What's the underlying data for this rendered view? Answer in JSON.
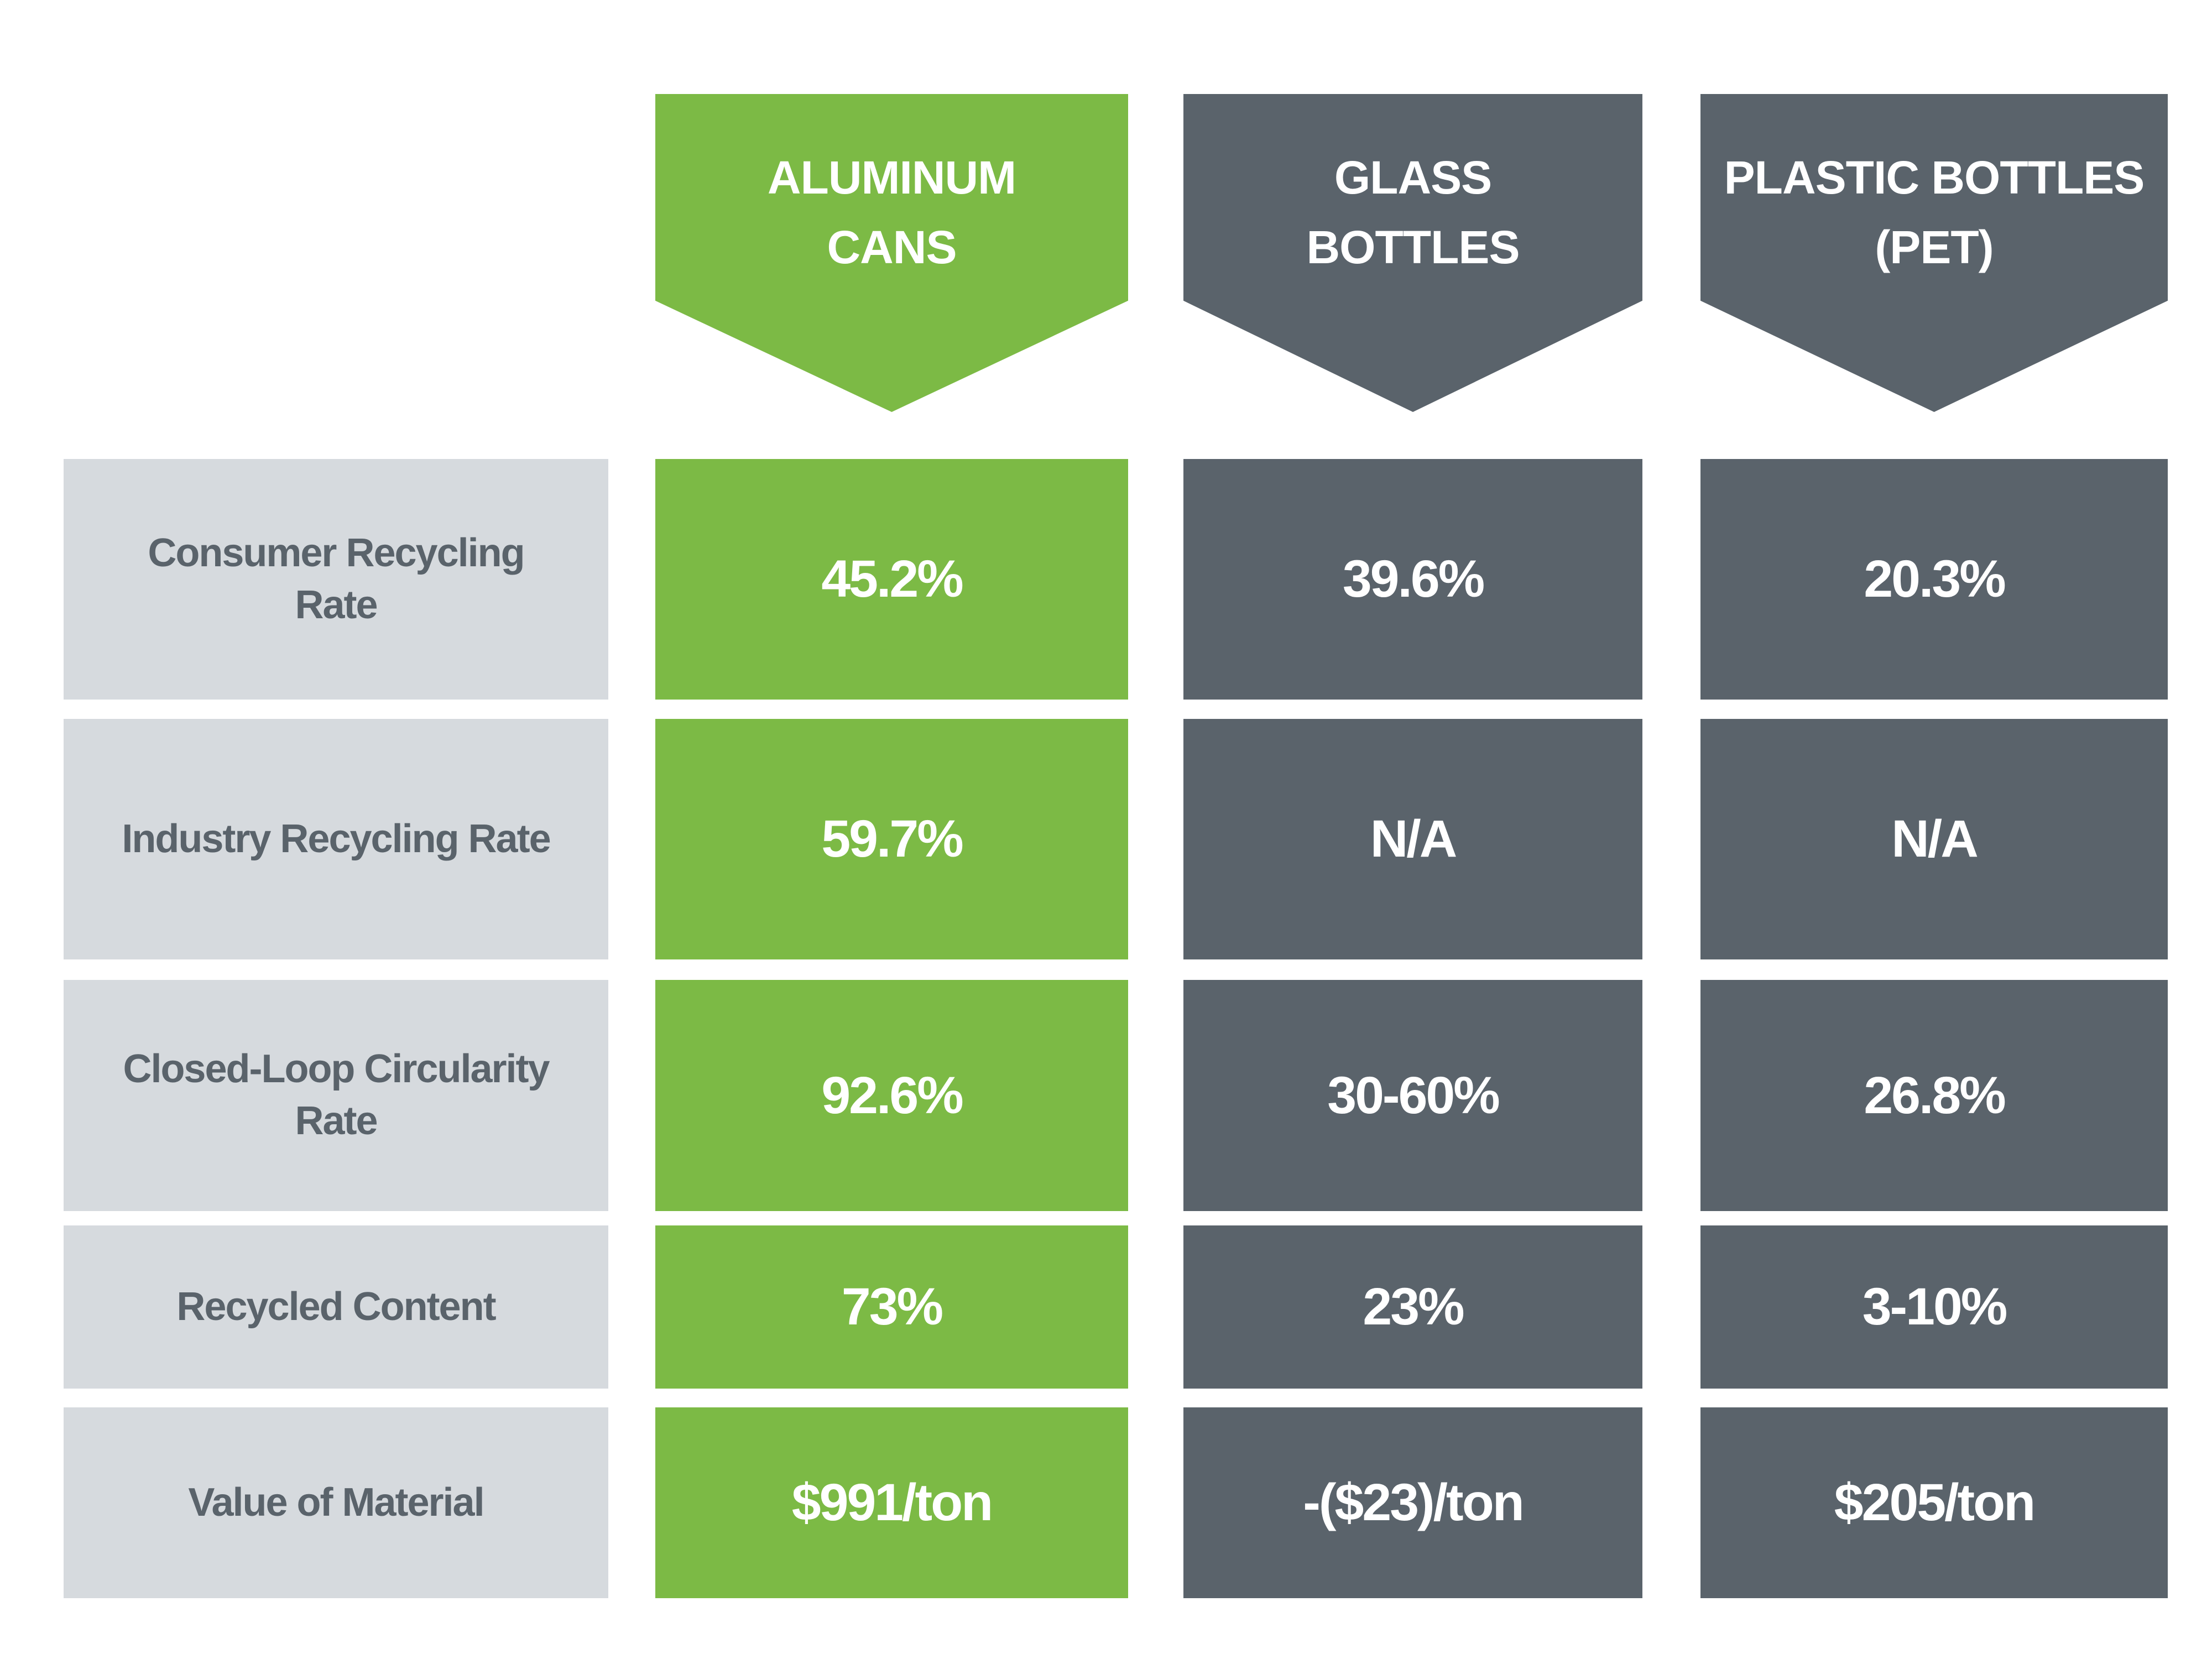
{
  "colors": {
    "accent_green": "#7CBA45",
    "slate_gray": "#5A636B",
    "row_label_bg": "#D6DADE",
    "text_on_fill": "#FFFFFF"
  },
  "table": {
    "headers": [
      {
        "line1": "ALUMINUM",
        "line2": "CANS",
        "full": "ALUMINUM CANS"
      },
      {
        "line1": "GLASS",
        "line2": "BOTTLES",
        "full": "GLASS BOTTLES"
      },
      {
        "line1": "PLASTIC BOTTLES",
        "line2": "(PET)",
        "full": "PLASTIC BOTTLES (PET)"
      }
    ],
    "rows": [
      {
        "label": "Consumer Recycling Rate",
        "values": [
          "45.2%",
          "39.6%",
          "20.3%"
        ]
      },
      {
        "label": "Industry Recycling Rate",
        "values": [
          "59.7%",
          "N/A",
          "N/A"
        ]
      },
      {
        "label": "Closed-Loop Circularity Rate",
        "values": [
          "92.6%",
          "30-60%",
          "26.8%"
        ]
      },
      {
        "label": "Recycled Content",
        "values": [
          "73%",
          "23%",
          "3-10%"
        ]
      },
      {
        "label": "Value of Material",
        "values": [
          "$991/ton",
          "-($23)/ton",
          "$205/ton"
        ]
      }
    ]
  },
  "chart_data": {
    "type": "table",
    "title": "",
    "row_labels": [
      "Consumer Recycling Rate",
      "Industry Recycling Rate",
      "Closed-Loop Circularity Rate",
      "Recycled Content",
      "Value of Material"
    ],
    "columns": [
      "ALUMINUM CANS",
      "GLASS BOTTLES",
      "PLASTIC BOTTLES (PET)"
    ],
    "series": [
      {
        "name": "ALUMINUM CANS",
        "values": [
          "45.2%",
          "59.7%",
          "92.6%",
          "73%",
          "$991/ton"
        ]
      },
      {
        "name": "GLASS BOTTLES",
        "values": [
          "39.6%",
          "N/A",
          "30-60%",
          "23%",
          "-($23)/ton"
        ]
      },
      {
        "name": "PLASTIC BOTTLES (PET)",
        "values": [
          "20.3%",
          "N/A",
          "26.8%",
          "3-10%",
          "$205/ton"
        ]
      }
    ],
    "highlight_column": "ALUMINUM CANS",
    "legend_position": "none",
    "grid": false
  }
}
